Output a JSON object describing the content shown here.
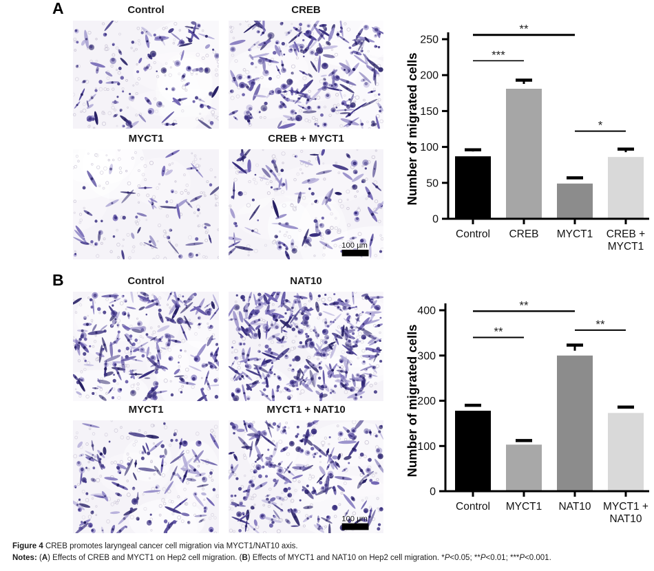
{
  "figure": {
    "caption": {
      "line1": [
        {
          "t": "Figure 4 ",
          "b": 1
        },
        {
          "t": "CREB promotes laryngeal cancer cell migration via MYCT1/NAT10 axis."
        }
      ],
      "line2": [
        {
          "t": "Notes: ",
          "b": 1
        },
        {
          "t": "("
        },
        {
          "t": "A",
          "b": 1
        },
        {
          "t": ") Effects of CREB and MYCT1 on Hep2 cell migration. ("
        },
        {
          "t": "B",
          "b": 1
        },
        {
          "t": ") Effects of MYCT1 and NAT10 on Hep2 cell migration. *"
        },
        {
          "t": "P",
          "i": 1
        },
        {
          "t": "<0.05; **"
        },
        {
          "t": "P",
          "i": 1
        },
        {
          "t": "<0.01; ***"
        },
        {
          "t": "P",
          "i": 1
        },
        {
          "t": "<0.001."
        }
      ]
    },
    "microscopy_style": {
      "background": "#f5f3f8",
      "pore_stroke": "#c6c0d2",
      "cell_palette": [
        "#3a3080",
        "#5a4fa0",
        "#7468b5",
        "#9188c6",
        "#b3abd8",
        "#282165"
      ],
      "scale_bar_label": "100 µm",
      "scale_bar_color": "#000000",
      "label_color": "#111111"
    },
    "panels": [
      {
        "label": "A",
        "images": [
          {
            "label": "Control",
            "relative_density": 87,
            "seed": 11,
            "scale_bar": false
          },
          {
            "label": "CREB",
            "relative_density": 181,
            "seed": 22,
            "scale_bar": false
          },
          {
            "label": "MYCT1",
            "relative_density": 49,
            "seed": 33,
            "scale_bar": false
          },
          {
            "label": "CREB + MYCT1",
            "relative_density": 86,
            "seed": 44,
            "scale_bar": true
          }
        ]
      },
      {
        "label": "B",
        "images": [
          {
            "label": "Control",
            "relative_density": 178,
            "seed": 55,
            "scale_bar": false
          },
          {
            "label": "NAT10",
            "relative_density": 300,
            "seed": 66,
            "scale_bar": false
          },
          {
            "label": "MYCT1",
            "relative_density": 103,
            "seed": 77,
            "scale_bar": false
          },
          {
            "label": "MYCT1 + NAT10",
            "relative_density": 173,
            "seed": 88,
            "scale_bar": true
          }
        ]
      }
    ]
  },
  "chart_data": [
    {
      "type": "bar",
      "panel": "A",
      "title": "",
      "xlabel": "",
      "ylabel": "Number of migrated cells",
      "ylim": [
        0,
        250
      ],
      "yticks": [
        0,
        50,
        100,
        150,
        200,
        250
      ],
      "grid": false,
      "legend": null,
      "categories": [
        "Control",
        "CREB",
        "MYCT1",
        "CREB +\nMYCT1"
      ],
      "values": [
        87,
        181,
        49,
        86
      ],
      "errors": [
        9,
        12,
        8,
        11
      ],
      "bar_colors": [
        "#000000",
        "#a6a6a6",
        "#8c8c8c",
        "#d9d9d9"
      ],
      "significance": [
        {
          "between": [
            0,
            1
          ],
          "at": 220,
          "label": "***",
          "lw": 1.7
        },
        {
          "between": [
            0,
            2
          ],
          "at": 256,
          "label": "**",
          "lw": 3
        },
        {
          "between": [
            2,
            3
          ],
          "at": 122,
          "label": "*",
          "lw": 2
        }
      ]
    },
    {
      "type": "bar",
      "panel": "B",
      "title": "",
      "xlabel": "",
      "ylabel": "Number of migrated cells",
      "ylim": [
        0,
        400
      ],
      "yticks": [
        0,
        100,
        200,
        300,
        400
      ],
      "grid": false,
      "legend": null,
      "categories": [
        "Control",
        "MYCT1",
        "NAT10",
        "MYCT1 +\nNAT10"
      ],
      "values": [
        178,
        103,
        300,
        173
      ],
      "errors": [
        12,
        9,
        23,
        13
      ],
      "bar_colors": [
        "#000000",
        "#a8a8a8",
        "#8c8c8c",
        "#d9d9d9"
      ],
      "significance": [
        {
          "between": [
            0,
            1
          ],
          "at": 340,
          "label": "**",
          "lw": 2
        },
        {
          "between": [
            0,
            2
          ],
          "at": 398,
          "label": "**",
          "lw": 2.4
        },
        {
          "between": [
            2,
            3
          ],
          "at": 356,
          "label": "**",
          "lw": 2
        }
      ]
    }
  ]
}
